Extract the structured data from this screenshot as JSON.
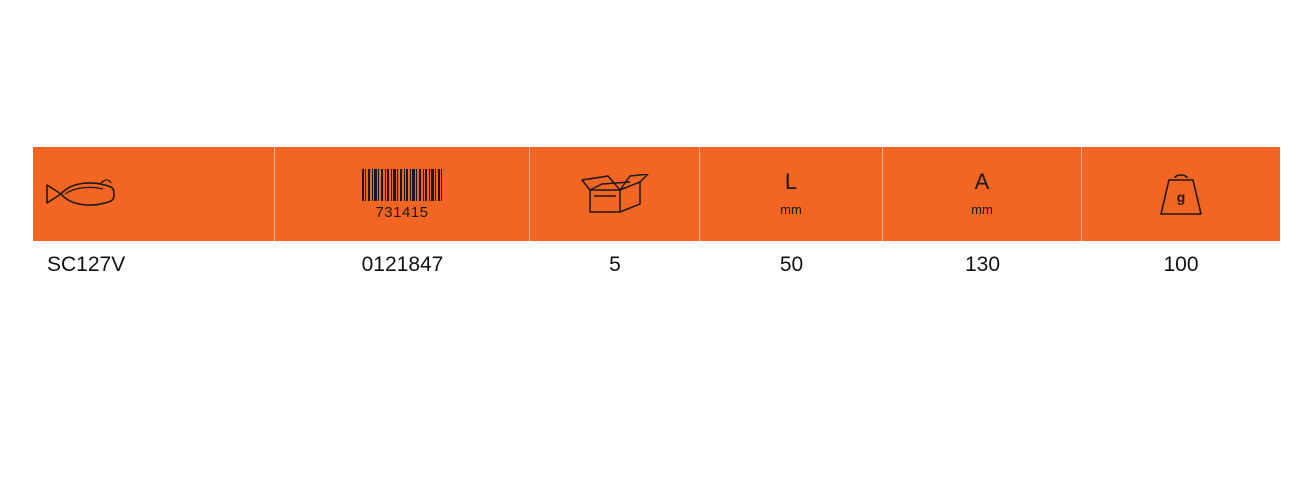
{
  "colors": {
    "header_bg": "#f26522",
    "divider": "#f8b48e",
    "text": "#1a1a1a"
  },
  "header": {
    "model_icon": "fish-icon",
    "barcode_number": "731415",
    "package_icon": "open-box-icon",
    "length": {
      "letter": "L",
      "unit": "mm"
    },
    "width": {
      "letter": "A",
      "unit": "mm"
    },
    "weight": {
      "icon": "weight-icon",
      "label": "g"
    }
  },
  "row": {
    "model": "SC127V",
    "code": "0121847",
    "pack_qty": "5",
    "length": "50",
    "width": "130",
    "weight": "100"
  }
}
